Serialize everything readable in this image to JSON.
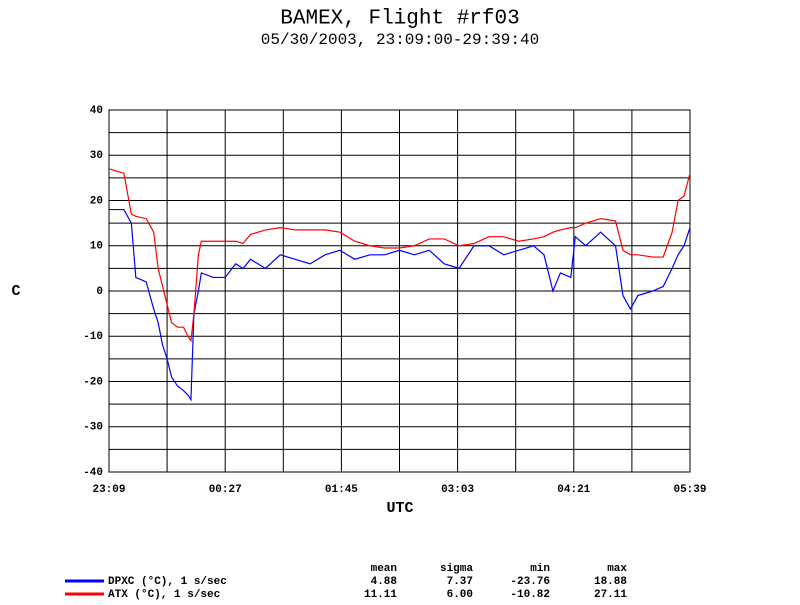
{
  "chart_data": {
    "type": "line",
    "title": "BAMEX, Flight #rf03",
    "subtitle": "05/30/2003, 23:09:00-29:39:40",
    "x_label": "UTC",
    "y_label": "C",
    "x": [
      "23:09",
      "23:19",
      "23:24",
      "23:27",
      "23:34",
      "23:39",
      "23:42",
      "23:45",
      "23:48",
      "23:51",
      "23:55",
      "23:59",
      "00:02",
      "00:04",
      "00:06",
      "00:09",
      "00:11",
      "00:19",
      "00:27",
      "00:34",
      "00:39",
      "00:44",
      "00:54",
      "01:04",
      "01:14",
      "01:24",
      "01:34",
      "01:44",
      "01:54",
      "02:04",
      "02:14",
      "02:24",
      "02:34",
      "02:44",
      "02:54",
      "03:04",
      "03:14",
      "03:24",
      "03:34",
      "03:44",
      "03:54",
      "04:01",
      "04:07",
      "04:12",
      "04:19",
      "04:22",
      "04:29",
      "04:39",
      "04:49",
      "04:54",
      "04:59",
      "05:04",
      "05:14",
      "05:21",
      "05:27",
      "05:31",
      "05:35",
      "05:39"
    ],
    "series": [
      {
        "name": "DPXC (°C), 1 s/sec",
        "color": "#0000ff",
        "values": [
          18,
          18,
          15,
          3,
          2,
          -4,
          -7,
          -12,
          -15,
          -19,
          -21,
          -22,
          -23,
          -24,
          -5,
          0,
          4,
          3,
          3,
          6,
          5,
          7,
          5,
          8,
          7,
          6,
          8,
          9,
          7,
          8,
          8,
          9,
          8,
          9,
          6,
          5,
          10,
          10,
          8,
          9,
          10,
          8,
          0,
          4,
          3,
          12,
          10,
          13,
          10,
          -1,
          -4,
          -1,
          0,
          1,
          5,
          8,
          10,
          14
        ]
      },
      {
        "name": "ATX (°C), 1 s/sec",
        "color": "#ff0000",
        "values": [
          27,
          26,
          17,
          16.5,
          16,
          13,
          5,
          1,
          -3,
          -7,
          -8,
          -8,
          -10,
          -11,
          -5,
          8,
          11,
          11,
          11,
          11,
          10.5,
          12.5,
          13.5,
          14,
          13.5,
          13.5,
          13.5,
          13,
          11,
          10,
          9.5,
          9.5,
          10,
          11.5,
          11.5,
          10,
          10.5,
          12,
          12,
          11,
          11.5,
          12,
          13,
          13.5,
          14,
          14,
          15,
          16,
          15.5,
          9,
          8,
          8,
          7.5,
          7.5,
          13,
          20,
          21,
          26
        ]
      }
    ],
    "xlim": [
      "23:09",
      "05:39"
    ],
    "xticks": [
      "23:09",
      {
        "value": "23:48",
        "label": null
      },
      "00:27",
      {
        "value": "01:06",
        "label": null
      },
      "01:45",
      {
        "value": "02:24",
        "label": null
      },
      "03:03",
      {
        "value": "03:42",
        "label": null
      },
      "04:21",
      {
        "value": "05:00",
        "label": null
      },
      "05:39"
    ],
    "ylim": [
      -40,
      40
    ],
    "yticks": [
      -40,
      {
        "value": -35,
        "label": null
      },
      -30,
      {
        "value": -25,
        "label": null
      },
      -20,
      {
        "value": -15,
        "label": null
      },
      -10,
      {
        "value": -5,
        "label": null
      },
      0,
      {
        "value": 5,
        "label": null
      },
      10,
      {
        "value": 15,
        "label": null
      },
      20,
      {
        "value": 25,
        "label": null
      },
      30,
      {
        "value": 35,
        "label": null
      },
      40
    ],
    "grid": true,
    "stats_header": [
      "mean",
      "sigma",
      "min",
      "max"
    ],
    "stats": [
      [
        "4.88",
        "7.37",
        "-23.76",
        "18.88"
      ],
      [
        "11.11",
        "6.00",
        "-10.82",
        "27.11"
      ]
    ]
  }
}
